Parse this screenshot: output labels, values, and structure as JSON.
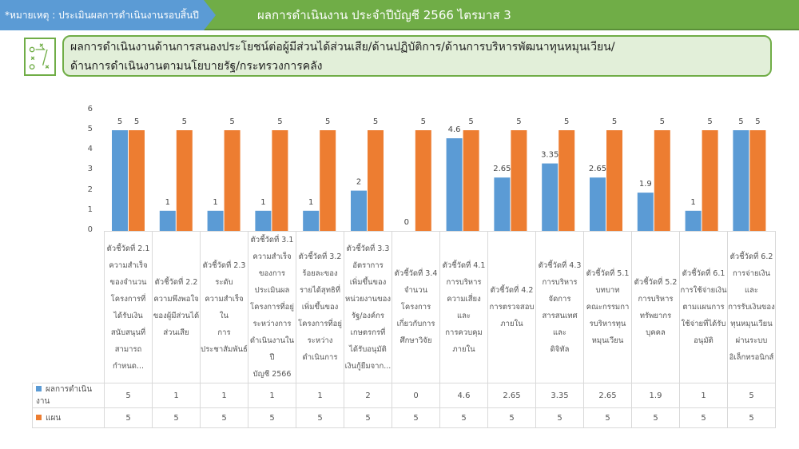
{
  "header": {
    "note": "*หมายเหตุ : ประเมินผลการดำเนินงานรอบสิ้นปี",
    "title": "ผลการดำเนินงาน ประจำปีบัญชี 2566 ไตรมาส 3"
  },
  "subtitle": {
    "line1": "ผลการดำเนินงานด้านการสนองประโยชน์ต่อผู้มีส่วนได้ส่วนเสีย/ด้านปฏิบัติการ/ด้านการบริหารพัฒนาทุนหมุนเวียน/",
    "line2": "ด้านการดำเนินงานตามนโยบายรัฐ/กระทรวงการคลัง",
    "icon": "strategy-board-icon"
  },
  "chart_data": {
    "type": "bar",
    "ylim": [
      0,
      6
    ],
    "yticks": [
      "0",
      "1",
      "2",
      "3",
      "4",
      "5",
      "6"
    ],
    "categories": [
      "ตัวชี้วัดที่ 2.1\nความสำเร็จ\nของจำนวน\nโครงการที่\nได้รับเงิน\nสนับสนุนที่\nสามารถ\nกำหนด...",
      "ตัวชี้วัดที่ 2.2\nความพึงพอใจ\nของผู้มีส่วนได้\nส่วนเสีย",
      "ตัวชี้วัดที่ 2.3\nระดับ\nความสำเร็จใน\nการ\nประชาสัมพันธ์",
      "ตัวชี้วัดที่ 3.1\nความสำเร็จ\nของการ\nประเมินผล\nโครงการที่อยู่\nระหว่างการ\nดำเนินงานในปี\nบัญชี 2566",
      "ตัวชี้วัดที่ 3.2\nร้อยละของ\nรายได้สุทธิที่\nเพิ่มขึ้นของ\nโครงการที่อยู่\nระหว่าง\nดำเนินการ",
      "ตัวชี้วัดที่ 3.3\nอัตราการ\nเพิ่มขึ้นของ\nหน่วยงานของ\nรัฐ/องค์กร\nเกษตรกรที่\nได้รับอนุมัติ\nเงินกู้ยืมจาก...",
      "ตัวชี้วัดที่ 3.4\nจำนวน\nโครงการ\nเกี่ยวกับการ\nศึกษาวิจัย",
      "ตัวชี้วัดที่ 4.1\nการบริหาร\nความเสี่ยงและ\nการควบคุม\nภายใน",
      "ตัวชี้วัดที่ 4.2\nการตรวจสอบ\nภายใน",
      "ตัวชี้วัดที่ 4.3\nการบริหาร\nจัดการ\nสารสนเทศและ\nดิจิทัล",
      "ตัวชี้วัดที่ 5.1\nบทบาท\nคณะกรรมกา\nรบริหารทุน\nหมุนเวียน",
      "ตัวชี้วัดที่ 5.2\nการบริหาร\nทรัพยากร\nบุคคล",
      "ตัวชี้วัดที่ 6.1\nการใช้จ่ายเงิน\nตามแผนการ\nใช้จ่ายที่ได้รับ\nอนุมัติ",
      "ตัวชี้วัดที่ 6.2\nการจ่ายเงินและ\nการรับเงินของ\nทุนหมุนเวียน\nผ่านระบบ\nอิเล็กทรอนิกส์"
    ],
    "series": [
      {
        "name": "ผลการดำเนินงาน",
        "color": "#5b9bd5",
        "values": [
          5,
          1,
          1,
          1,
          1,
          2,
          0,
          4.6,
          2.65,
          3.35,
          2.65,
          1.9,
          1,
          5
        ],
        "labels": [
          "5",
          "1",
          "1",
          "1",
          "1",
          "2",
          "0",
          "4.6",
          "2.65",
          "3.35",
          "2.65",
          "1.9",
          "1",
          "5"
        ]
      },
      {
        "name": "แผน",
        "color": "#ed7d31",
        "values": [
          5,
          5,
          5,
          5,
          5,
          5,
          5,
          5,
          5,
          5,
          5,
          5,
          5,
          5
        ],
        "labels": [
          "5",
          "5",
          "5",
          "5",
          "5",
          "5",
          "5",
          "5",
          "5",
          "5",
          "5",
          "5",
          "5",
          "5"
        ]
      }
    ]
  }
}
